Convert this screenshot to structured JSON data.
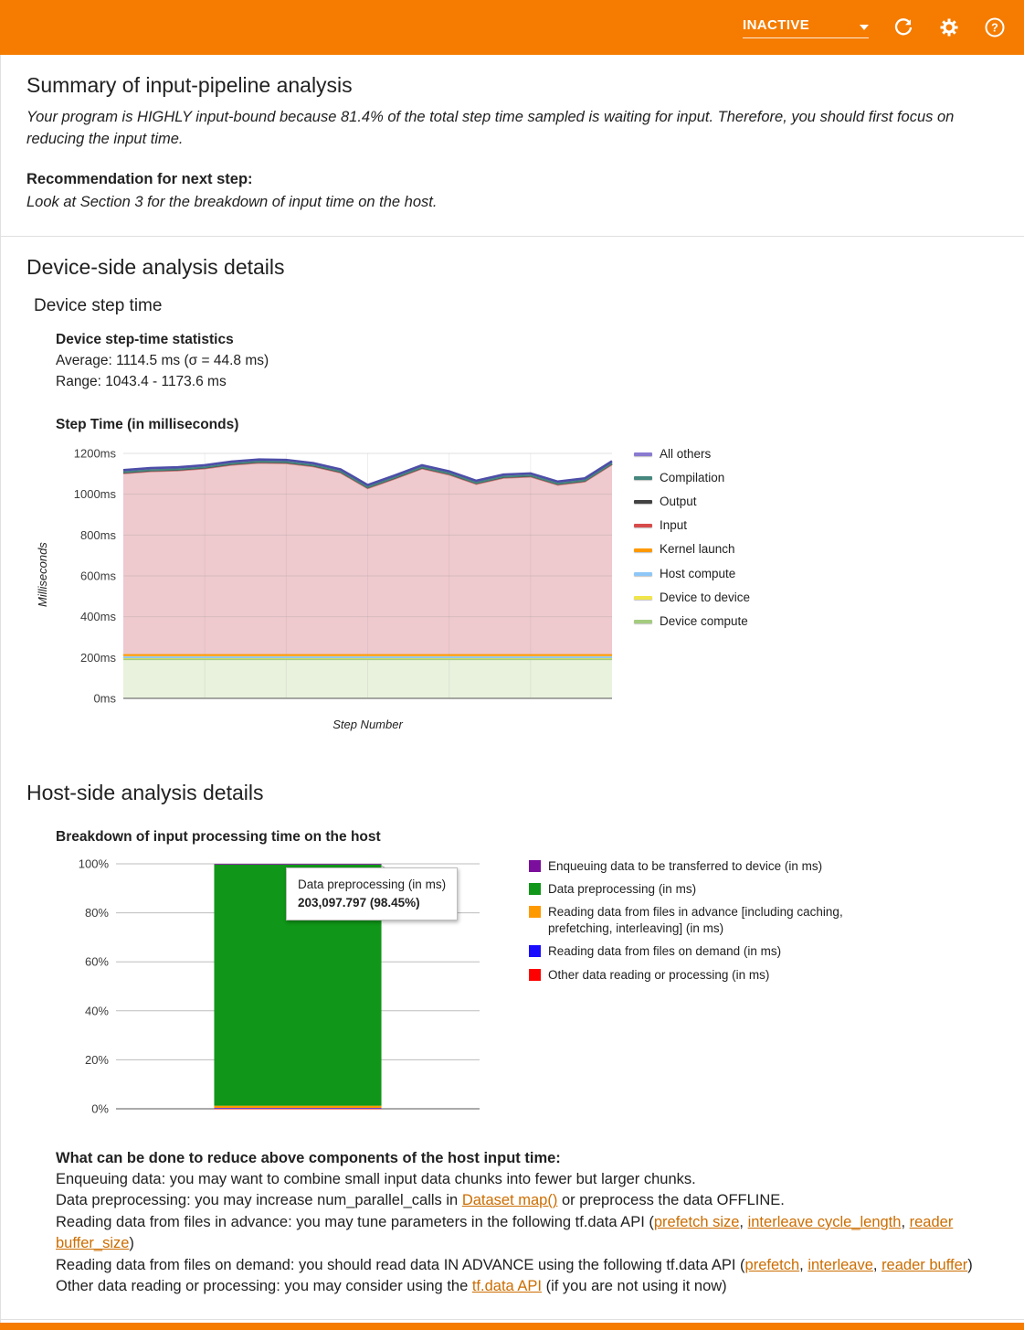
{
  "theme": {
    "accent": "#f57c00",
    "link": "#cc6d00"
  },
  "header": {
    "status": "INACTIVE",
    "icons": {
      "dropdown": "chevron-down-icon",
      "refresh": "refresh-icon",
      "settings": "gear-icon",
      "help": "help-icon"
    }
  },
  "summary": {
    "title": "Summary of input-pipeline analysis",
    "body": "Your program is HIGHLY input-bound because 81.4% of the total step time sampled is waiting for input. Therefore, you should first focus on reducing the input time.",
    "recommendation_label": "Recommendation for next step:",
    "recommendation": "Look at Section 3 for the breakdown of input time on the host."
  },
  "device": {
    "title": "Device-side analysis details",
    "subtitle": "Device step time",
    "stats_title": "Device step-time statistics",
    "average": "Average: 1114.5 ms (σ = 44.8 ms)",
    "range": "Range: 1043.4 - 1173.6 ms",
    "chart_title": "Step Time (in milliseconds)"
  },
  "host": {
    "title": "Host-side analysis details",
    "chart_title": "Breakdown of input processing time on the host",
    "tooltip": {
      "title": "Data preprocessing (in ms)",
      "value": "203,097.797 (98.45%)"
    },
    "advice_title": "What can be done to reduce above components of the host input time:",
    "advice": [
      {
        "segments": [
          {
            "text": "Enqueuing data: you may want to combine small input data chunks into fewer but larger chunks."
          }
        ]
      },
      {
        "segments": [
          {
            "text": "Data preprocessing: you may increase num_parallel_calls in "
          },
          {
            "text": "Dataset map()",
            "link": true
          },
          {
            "text": " or preprocess the data OFFLINE."
          }
        ]
      },
      {
        "segments": [
          {
            "text": "Reading data from files in advance: you may tune parameters in the following tf.data API ("
          },
          {
            "text": "prefetch size",
            "link": true
          },
          {
            "text": ", "
          },
          {
            "text": "interleave cycle_length",
            "link": true
          },
          {
            "text": ", "
          },
          {
            "text": "reader buffer_size",
            "link": true
          },
          {
            "text": ")"
          }
        ]
      },
      {
        "segments": [
          {
            "text": "Reading data from files on demand: you should read data IN ADVANCE using the following tf.data API ("
          },
          {
            "text": "prefetch",
            "link": true
          },
          {
            "text": ", "
          },
          {
            "text": "interleave",
            "link": true
          },
          {
            "text": ", "
          },
          {
            "text": "reader buffer",
            "link": true
          },
          {
            "text": ")"
          }
        ]
      },
      {
        "segments": [
          {
            "text": "Other data reading or processing: you may consider using the "
          },
          {
            "text": "tf.data API",
            "link": true
          },
          {
            "text": " (if you are not using it now)"
          }
        ]
      }
    ]
  },
  "chart_data": [
    {
      "type": "area",
      "title": "Step Time (in milliseconds)",
      "xlabel": "Step Number",
      "ylabel": "Milliseconds",
      "ylim": [
        0,
        1200
      ],
      "yticks": [
        "0ms",
        "200ms",
        "400ms",
        "600ms",
        "800ms",
        "1000ms",
        "1200ms"
      ],
      "grid": true,
      "legend_position": "right",
      "legend": [
        {
          "label": "All others",
          "color": "#8a7ad0"
        },
        {
          "label": "Compilation",
          "color": "#45867d"
        },
        {
          "label": "Output",
          "color": "#424242"
        },
        {
          "label": "Input",
          "color": "#d84b4b"
        },
        {
          "label": "Kernel launch",
          "color": "#ff9900"
        },
        {
          "label": "Host compute",
          "color": "#8ec7f7"
        },
        {
          "label": "Device to device",
          "color": "#f0e54a"
        },
        {
          "label": "Device compute",
          "color": "#a4cc7f"
        }
      ],
      "series": [
        {
          "name": "Device compute",
          "stroke": "#a4cc7f",
          "fill": "#e9f2dd",
          "values": 192
        },
        {
          "name": "Device to device",
          "stroke": "#f0e54a",
          "fill": "#f7f3b5",
          "values": 6
        },
        {
          "name": "Host compute",
          "stroke": "#8ec7f7",
          "fill": "#d4e9fc",
          "values": 3
        },
        {
          "name": "Kernel launch",
          "stroke": "#ff9900",
          "fill": "#ffd9a0",
          "values": 11
        },
        {
          "name": "Input",
          "stroke": "#cc7a7a",
          "fill": "#eec9cd",
          "values": [
            890,
            900,
            904,
            914,
            932,
            942,
            940,
            924,
            894,
            817,
            864,
            914,
            884,
            838,
            868,
            874,
            834,
            850,
            934
          ]
        },
        {
          "name": "Output",
          "stroke": "#424242",
          "fill": "#bdbdbd",
          "values": 4
        },
        {
          "name": "Compilation",
          "stroke": "#45867d",
          "fill": "#bcd9d2",
          "values": 2
        },
        {
          "name": "All others",
          "stroke": "#4d4da8",
          "fill": "#c5bde8",
          "values": 10
        }
      ]
    },
    {
      "type": "bar",
      "title": "Breakdown of input processing time on the host",
      "ylim": [
        0,
        100
      ],
      "yticks": [
        "0%",
        "20%",
        "40%",
        "60%",
        "80%",
        "100%"
      ],
      "grid": true,
      "legend_position": "right",
      "legend": [
        {
          "label": "Enqueuing data to be transferred to device (in ms)",
          "color": "#7b0e9c"
        },
        {
          "label": "Data preprocessing (in ms)",
          "color": "#109618"
        },
        {
          "label": "Reading data from files in advance [including caching, prefetching, interleaving] (in ms)",
          "color": "#ff9900"
        },
        {
          "label": "Reading data from files on demand (in ms)",
          "color": "#1a0dff"
        },
        {
          "label": "Other data reading or processing (in ms)",
          "color": "#ff0000"
        }
      ],
      "bar_segments": [
        {
          "label": "Other data reading or processing (in ms)",
          "value": 0.15,
          "color": "#ff0000"
        },
        {
          "label": "Reading data from files on demand (in ms)",
          "value": 0.15,
          "color": "#1a0dff"
        },
        {
          "label": "Reading data from files in advance [including caching, prefetching, interleaving] (in ms)",
          "value": 0.95,
          "color": "#ff9900"
        },
        {
          "label": "Data preprocessing (in ms)",
          "value": 98.45,
          "color": "#109618"
        },
        {
          "label": "Enqueuing data to be transferred to device (in ms)",
          "value": 0.3,
          "color": "#7b0e9c"
        }
      ]
    }
  ]
}
